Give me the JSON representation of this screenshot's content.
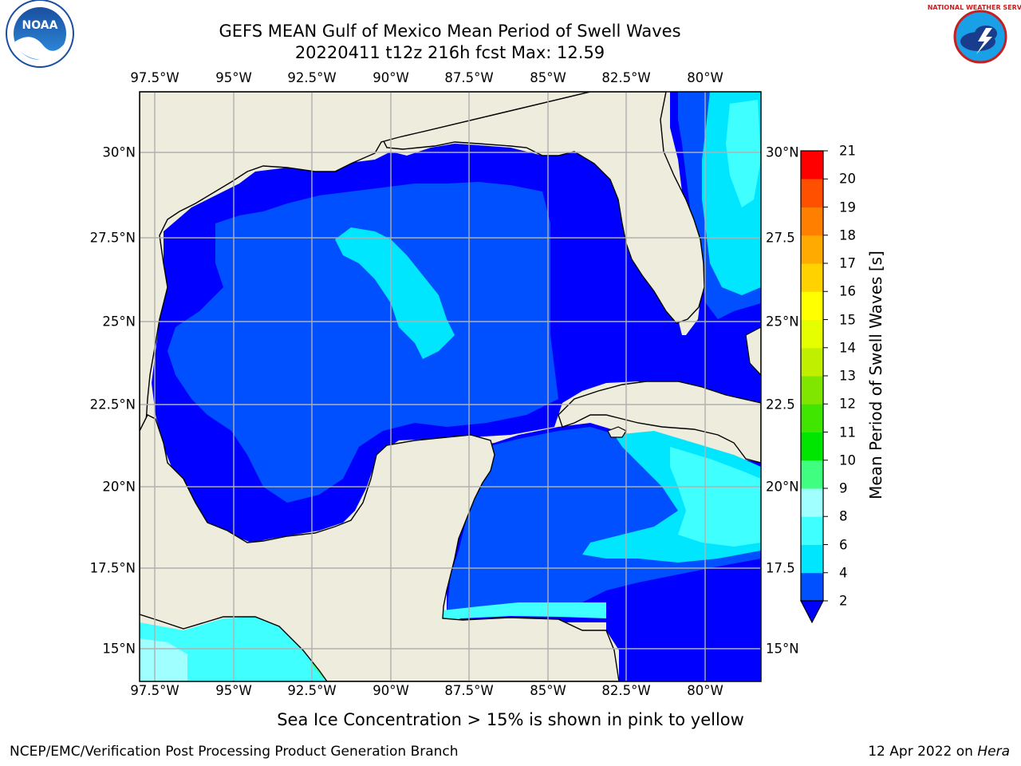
{
  "title": {
    "line1": "GEFS MEAN Gulf of Mexico Mean Period of Swell Waves",
    "line2": "20220411 t12z 216h fcst   Max: 12.59"
  },
  "axes": {
    "lon_ticks": [
      "97.5°W",
      "95°W",
      "92.5°W",
      "90°W",
      "87.5°W",
      "85°W",
      "82.5°W",
      "80°W"
    ],
    "lat_ticks_left": [
      "30°N",
      "27.5°N",
      "25°N",
      "22.5°N",
      "20°N",
      "17.5°N",
      "15°N"
    ],
    "lat_ticks_right": [
      "30°N",
      "27.5",
      "25°N",
      "22.5",
      "20°N",
      "17.5",
      "15°N"
    ]
  },
  "colorbar": {
    "title": "Mean Period of Swell Waves [s]",
    "ticks": [
      "2",
      "4",
      "6",
      "8",
      "9",
      "10",
      "11",
      "12",
      "13",
      "14",
      "15",
      "16",
      "17",
      "18",
      "19",
      "20",
      "21"
    ],
    "colors": [
      "#0000ff",
      "#0050ff",
      "#00a0ff",
      "#00e6ff",
      "#40ffff",
      "#a0ffff",
      "#40ff80",
      "#00e600",
      "#40e600",
      "#80e600",
      "#c0f000",
      "#e6ff00",
      "#ffff00",
      "#ffd200",
      "#ffaa00",
      "#ff8000",
      "#ff5000",
      "#ff2800",
      "#ff0000"
    ],
    "extend": "min"
  },
  "map": {
    "land_color": "#eeecdc",
    "grid_color": "#b0b0b0",
    "lon_range": [
      -98,
      -78.2
    ],
    "lat_range": [
      14,
      31.75
    ],
    "max_value": "12.59"
  },
  "footer": {
    "note": "Sea Ice Concentration > 15% is shown in pink to yellow",
    "credit_left": "NCEP/EMC/Verification Post Processing Product Generation Branch",
    "credit_right_prefix": "12 Apr 2022 on",
    "credit_right_host": "Hera"
  },
  "logos": {
    "left": "noaa-logo",
    "right": "national-weather-service-logo",
    "left_text": "NOAA",
    "right_text": "NATIONAL WEATHER SERVICE"
  }
}
